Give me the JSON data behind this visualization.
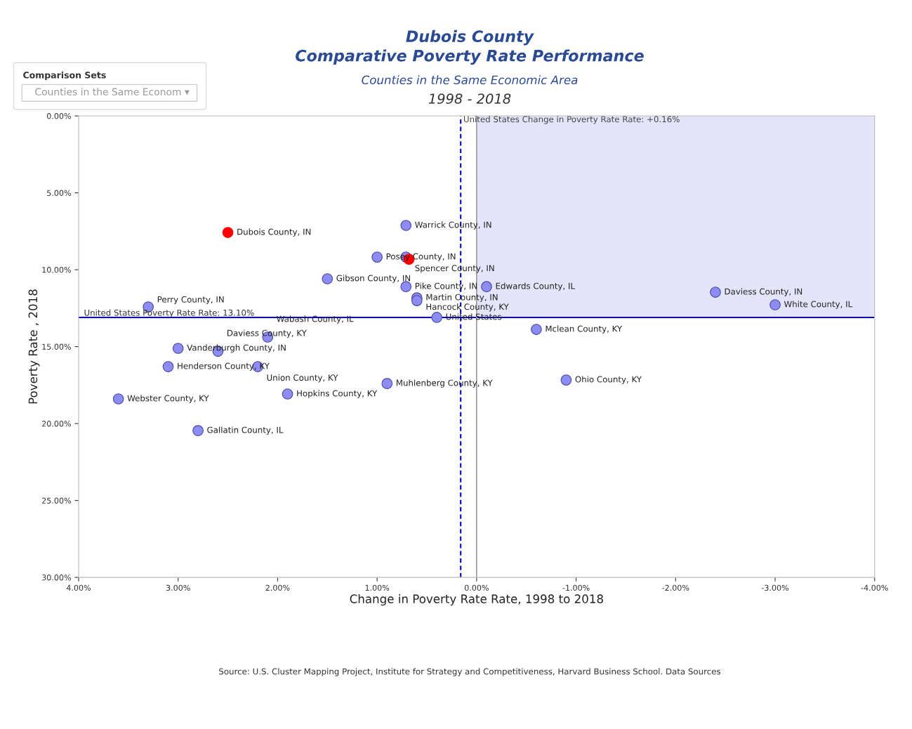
{
  "chart_data": {
    "type": "scatter",
    "title": "Dubois County\nComparative Poverty Rate Performance",
    "subtitle": "Counties in the Same Economic Area",
    "xlabel": "Change in Poverty Rate Rate, 1998 to 2018",
    "ylabel": "Poverty Rate , 2018",
    "xlim": [
      4,
      -4
    ],
    "ylim": [
      30,
      0
    ],
    "xticks": [
      {
        "value": 4,
        "label": "4.00%"
      },
      {
        "value": 3,
        "label": "3.00%"
      },
      {
        "value": 2,
        "label": "2.00%"
      },
      {
        "value": 1,
        "label": "1.00%"
      },
      {
        "value": 0,
        "label": "0.00%"
      },
      {
        "value": -1,
        "label": "-1.00%"
      },
      {
        "value": -2,
        "label": "-2.00%"
      },
      {
        "value": -3,
        "label": "-3.00%"
      },
      {
        "value": -4,
        "label": "-4.00%"
      }
    ],
    "yticks": [
      {
        "value": 0,
        "label": "0.00%"
      },
      {
        "value": 5,
        "label": "5.00%"
      },
      {
        "value": 10,
        "label": "10.00%"
      },
      {
        "value": 15,
        "label": "15.00%"
      },
      {
        "value": 20,
        "label": "20.00%"
      },
      {
        "value": 25,
        "label": "25.00%"
      },
      {
        "value": 30,
        "label": "30.00%"
      }
    ],
    "grid": false,
    "marker": "circle",
    "series": [
      {
        "color": "#8c8cf2",
        "x": [
          0.71,
          1.0,
          0.71,
          1.5,
          0.71,
          -0.1,
          0.6,
          0.6,
          0.4,
          -2.4,
          -3.0,
          -0.6,
          -0.9,
          0.9,
          1.9,
          2.8,
          3.6,
          3.1,
          2.2,
          3.0,
          2.6,
          2.1,
          3.3
        ],
        "values": [
          7.12,
          9.18,
          9.18,
          10.59,
          11.1,
          11.1,
          11.83,
          12.01,
          13.1,
          11.46,
          12.28,
          13.88,
          17.17,
          17.4,
          18.08,
          20.46,
          18.4,
          16.3,
          16.3,
          15.11,
          15.3,
          14.38,
          12.42
        ]
      },
      {
        "color": "#ff0000",
        "x": [
          2.5,
          0.68
        ],
        "values": [
          7.58,
          9.32
        ]
      }
    ],
    "ref_lines": [
      {
        "axis": "y",
        "value": 13.1,
        "label": "United States Poverty Rate Rate: 13.10%",
        "color": "#0000ee",
        "line_style": "solid"
      },
      {
        "axis": "x",
        "value": 0.16,
        "label": "United States Change in Poverty Rate Rate: +0.16%",
        "color": "#0000ee",
        "line_style": "dashed"
      },
      {
        "axis": "x",
        "value": 0,
        "color": "#999999",
        "line_style": "solid"
      }
    ],
    "bands": [
      {
        "axis": "x",
        "from": 0,
        "to": -4,
        "color": "#e4e4fa"
      }
    ],
    "annotations": [
      "1998 - 2018",
      "Comparison Sets",
      "Counties in the Same Econom ▾",
      "Source: U.S. Cluster Mapping Project, Institute for Strategy and Competitiveness, Harvard Business School. Data Sources",
      {
        "text": "Warrick County, IN",
        "x": 0.71,
        "y": 7.12
      },
      {
        "text": "Posey County, IN",
        "x": 1.0,
        "y": 9.18
      },
      {
        "text": "Spencer County, IN",
        "x": 0.71,
        "y": 9.18
      },
      {
        "text": "Gibson County, IN",
        "x": 1.5,
        "y": 10.59
      },
      {
        "text": "Pike County, IN",
        "x": 0.71,
        "y": 11.1
      },
      {
        "text": "Edwards County, IL",
        "x": -0.1,
        "y": 11.1
      },
      {
        "text": "Martin County, IN",
        "x": 0.6,
        "y": 11.83
      },
      {
        "text": "Hancock County, KY",
        "x": 0.6,
        "y": 12.01
      },
      {
        "text": "United States",
        "x": 0.4,
        "y": 13.1
      },
      {
        "text": "Daviess County, IN",
        "x": -2.4,
        "y": 11.46
      },
      {
        "text": "White County, IL",
        "x": -3.0,
        "y": 12.28
      },
      {
        "text": "Mclean County, KY",
        "x": -0.6,
        "y": 13.88
      },
      {
        "text": "Ohio County, KY",
        "x": -0.9,
        "y": 17.17
      },
      {
        "text": "Muhlenberg County, KY",
        "x": 0.9,
        "y": 17.4
      },
      {
        "text": "Hopkins County, KY",
        "x": 1.9,
        "y": 18.08
      },
      {
        "text": "Gallatin County, IL",
        "x": 2.8,
        "y": 20.46
      },
      {
        "text": "Webster County, KY",
        "x": 3.6,
        "y": 18.4
      },
      {
        "text": "Henderson County, KY",
        "x": 3.1,
        "y": 16.3
      },
      {
        "text": "Union County, KY",
        "x": 2.2,
        "y": 16.3
      },
      {
        "text": "Vanderburgh County, IN",
        "x": 3.0,
        "y": 15.11
      },
      {
        "text": "Daviess County, KY",
        "x": 2.6,
        "y": 15.3
      },
      {
        "text": "Wabash County, IL",
        "x": 2.1,
        "y": 14.38
      },
      {
        "text": "Perry County, IN",
        "x": 3.3,
        "y": 12.42
      },
      {
        "text": "Dubois County, IN",
        "x": 2.5,
        "y": 7.58
      }
    ]
  }
}
